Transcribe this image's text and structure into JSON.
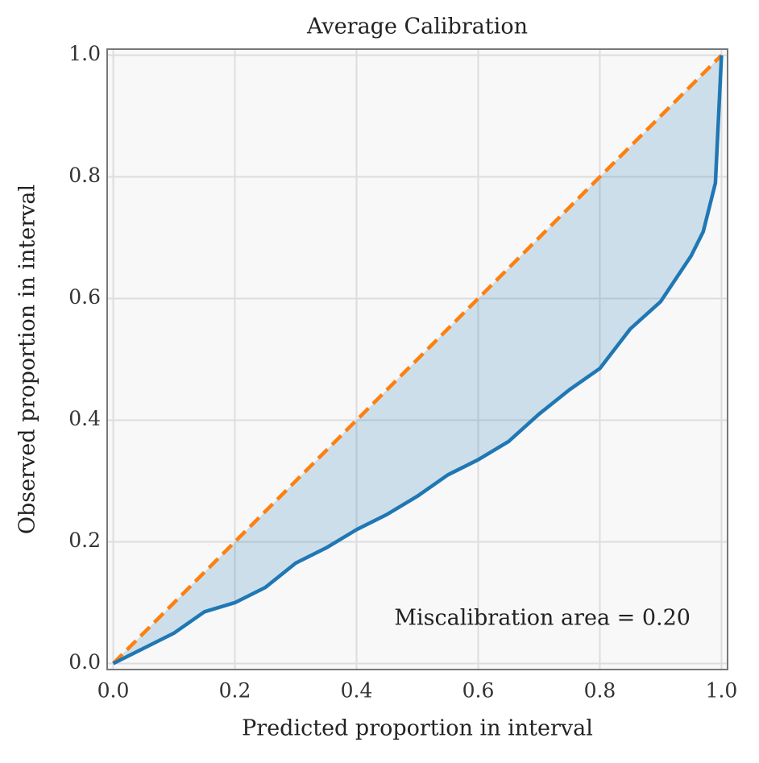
{
  "chart_data": {
    "type": "line",
    "title": "Average Calibration",
    "xlabel": "Predicted proportion in interval",
    "ylabel": "Observed proportion in interval",
    "annotation": "Miscalibration area = 0.20",
    "series": [
      {
        "x": [
          0,
          1
        ],
        "values": [
          0,
          1
        ],
        "color": "#ff7f0e",
        "dash": true
      },
      {
        "x": [
          0,
          0.05,
          0.1,
          0.15,
          0.2,
          0.25,
          0.3,
          0.35,
          0.4,
          0.45,
          0.5,
          0.55,
          0.6,
          0.65,
          0.7,
          0.75,
          0.8,
          0.85,
          0.9,
          0.95,
          0.97,
          0.99,
          1
        ],
        "values": [
          0,
          0.025,
          0.05,
          0.085,
          0.1,
          0.125,
          0.165,
          0.19,
          0.22,
          0.245,
          0.275,
          0.31,
          0.335,
          0.365,
          0.41,
          0.45,
          0.485,
          0.55,
          0.595,
          0.67,
          0.71,
          0.79,
          1
        ],
        "color": "#1f77b4"
      }
    ],
    "fill_color": "#1f77b4",
    "xlim": [
      -0.01,
      1.01
    ],
    "ylim": [
      -0.01,
      1.01
    ],
    "xticks": [
      {
        "value": 0,
        "label": "0.0"
      },
      0.2,
      0.4,
      0.6,
      0.8,
      {
        "value": 1,
        "label": "1.0"
      }
    ],
    "yticks": [
      {
        "value": 0,
        "label": "0.0"
      },
      0.2,
      0.4,
      0.6,
      0.8,
      {
        "value": 1,
        "label": "1.0"
      }
    ],
    "grid": true
  }
}
